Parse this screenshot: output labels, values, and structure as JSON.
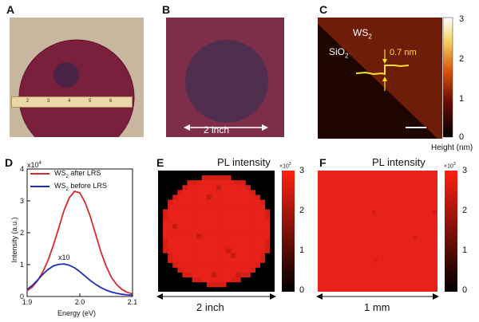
{
  "panels": {
    "a": {
      "label": "A"
    },
    "b": {
      "label": "B",
      "scale_text": "2 inch"
    },
    "c": {
      "label": "C",
      "ws2": "WS",
      "ws2_sub": "2",
      "sio2": "SiO",
      "sio2_sub": "2",
      "step": "0.7 nm",
      "colorbar_ticks": [
        "3",
        "2",
        "1",
        "0"
      ],
      "colorbar_title": "Height (nm)"
    },
    "d": {
      "label": "D",
      "multiplier": "x10",
      "multiplier_exp": "4",
      "scale_note": "x10"
    },
    "e": {
      "label": "E",
      "title": "PL intensity",
      "cb_mult": "×10",
      "cb_exp": "3",
      "colorbar_ticks": [
        "3",
        "2",
        "1",
        "0"
      ],
      "scale_text": "2 inch"
    },
    "f": {
      "label": "F",
      "title": "PL intensity",
      "cb_mult": "×10",
      "cb_exp": "3",
      "colorbar_ticks": [
        "3",
        "2",
        "1",
        "0"
      ],
      "scale_text": "1 mm"
    }
  },
  "ruler_ticks": [
    "2",
    "3",
    "4",
    "5",
    "6"
  ],
  "chart_data": [
    {
      "type": "line",
      "xlabel": "Energy (eV)",
      "ylabel": "Intensity (a.u.)",
      "xlim": [
        1.9,
        2.1
      ],
      "ylim": [
        0,
        4
      ],
      "x_ticks": [
        "1.9",
        "2.0",
        "2.1"
      ],
      "y_ticks": [
        "0",
        "1",
        "2",
        "3",
        "4"
      ],
      "series": [
        {
          "name": "WS2 after LRS",
          "legend_text": "WS",
          "legend_sub": "2",
          "legend_rest": " after LRS",
          "color": "#d62a2a",
          "x": [
            1.9,
            1.91,
            1.92,
            1.93,
            1.94,
            1.95,
            1.96,
            1.97,
            1.98,
            1.99,
            2.0,
            2.01,
            2.02,
            2.03,
            2.04,
            2.05,
            2.06,
            2.07,
            2.08,
            2.09,
            2.1
          ],
          "values": [
            0.18,
            0.3,
            0.5,
            0.78,
            1.15,
            1.62,
            2.15,
            2.7,
            3.1,
            3.3,
            3.25,
            2.95,
            2.5,
            1.95,
            1.4,
            0.95,
            0.6,
            0.37,
            0.22,
            0.13,
            0.08
          ]
        },
        {
          "name": "WS2 before LRS",
          "legend_text": "WS",
          "legend_sub": "2",
          "legend_rest": " before LRS",
          "color": "#1c2fb8",
          "x": [
            1.9,
            1.91,
            1.92,
            1.93,
            1.94,
            1.95,
            1.96,
            1.97,
            1.98,
            1.99,
            2.0,
            2.01,
            2.02,
            2.03,
            2.04,
            2.05,
            2.06,
            2.07,
            2.08,
            2.09,
            2.1
          ],
          "values": [
            0.22,
            0.35,
            0.52,
            0.7,
            0.85,
            0.96,
            1.01,
            1.02,
            0.98,
            0.9,
            0.78,
            0.64,
            0.5,
            0.38,
            0.28,
            0.2,
            0.14,
            0.1,
            0.07,
            0.05,
            0.04
          ]
        }
      ]
    },
    {
      "type": "heatmap",
      "title": "PL intensity",
      "colorbar_range": [
        0,
        3
      ],
      "colorbar_ticks": [
        "3",
        "2",
        "1",
        "0"
      ]
    },
    {
      "type": "heatmap",
      "title": "PL intensity",
      "colorbar_range": [
        0,
        3
      ],
      "colorbar_ticks": [
        "3",
        "2",
        "1",
        "0"
      ]
    }
  ],
  "colors": {
    "wafer": "#7a1f3c",
    "wafer_center": "#4a2347",
    "film_b": "#7e2e48",
    "afm_dark": "#1a0300",
    "afm_light": "#6e1d08",
    "trace": "#ffe02a",
    "map_red": "#e8221a"
  }
}
